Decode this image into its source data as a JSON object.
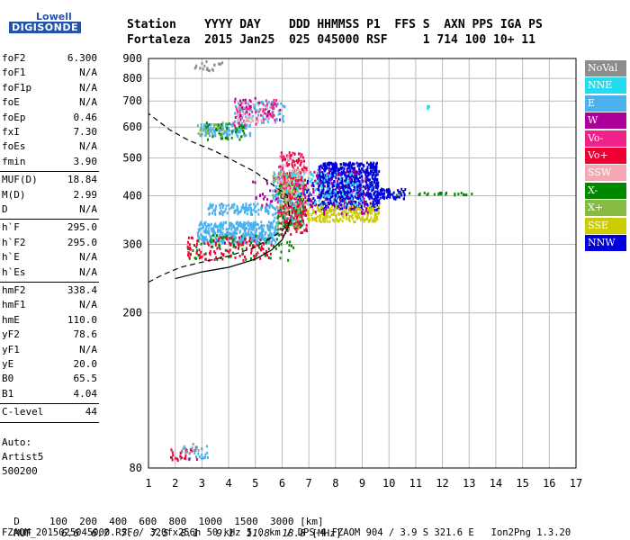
{
  "logo": {
    "line1": "Lowell",
    "line2": "DIGISONDE"
  },
  "header": {
    "row1": "Station    YYYY DAY    DDD HHMMSS P1  FFS S  AXN PPS IGA PS",
    "row2": "Fortaleza  2015 Jan25  025 045000 RSF     1 714 100 10+ 11"
  },
  "params": [
    {
      "name": "foF2",
      "value": "6.300"
    },
    {
      "name": "foF1",
      "value": "N/A"
    },
    {
      "name": "foF1p",
      "value": "N/A"
    },
    {
      "name": "foE",
      "value": "N/A"
    },
    {
      "name": "foEp",
      "value": "0.46"
    },
    {
      "name": "fxI",
      "value": "7.30"
    },
    {
      "name": "foEs",
      "value": "N/A"
    },
    {
      "name": "fmin",
      "value": "3.90"
    },
    {
      "name": "MUF(D)",
      "value": "18.84"
    },
    {
      "name": "M(D)",
      "value": "2.99"
    },
    {
      "name": "D",
      "value": "N/A"
    },
    {
      "name": "h`F",
      "value": "295.0"
    },
    {
      "name": "h`F2",
      "value": "295.0"
    },
    {
      "name": "h`E",
      "value": "N/A"
    },
    {
      "name": "h`Es",
      "value": "N/A"
    },
    {
      "name": "hmF2",
      "value": "338.4"
    },
    {
      "name": "hmF1",
      "value": "N/A"
    },
    {
      "name": "hmE",
      "value": "110.0"
    },
    {
      "name": "yF2",
      "value": "78.6"
    },
    {
      "name": "yF1",
      "value": "N/A"
    },
    {
      "name": "yE",
      "value": "20.0"
    },
    {
      "name": "B0",
      "value": "65.5"
    },
    {
      "name": "B1",
      "value": "4.04"
    },
    {
      "name": "C-level",
      "value": "44"
    }
  ],
  "auto_block": {
    "line1": "Auto:",
    "line2": "Artist5",
    "line3": "500200"
  },
  "legend": [
    {
      "label": "NoVal",
      "color": "#8c8c8c"
    },
    {
      "label": "NNE",
      "color": "#22ddee"
    },
    {
      "label": "E",
      "color": "#4ab0ee"
    },
    {
      "label": "W",
      "color": "#aa0099"
    },
    {
      "label": "Vo-",
      "color": "#ee2288"
    },
    {
      "label": "Vo+",
      "color": "#ee0033"
    },
    {
      "label": "SSW",
      "color": "#f4a8b4"
    },
    {
      "label": "X-",
      "color": "#008800"
    },
    {
      "label": "X+",
      "color": "#88bb44"
    },
    {
      "label": "SSE",
      "color": "#cccc00"
    },
    {
      "label": "NNW",
      "color": "#0000dd"
    }
  ],
  "muf_table": {
    "d_label": "D",
    "d_values": [
      "100",
      "200",
      "400",
      "600",
      "800",
      "1000",
      "1500",
      "3000"
    ],
    "d_unit": "[km]",
    "muf_label": "MUF",
    "muf_values": [
      "6.6",
      "6.7",
      "7.0",
      "7.5",
      "8.1",
      "9.1",
      "11.8",
      "18.8"
    ],
    "muf_unit": "[MHz]"
  },
  "footer": "FZAOM_2015025045000.RSF / 320fx256h 50 kHz 5.0 km / DPS-4 FZAOM 904 / 3.9 S 321.6 E   Ion2Png 1.3.20",
  "chart_data": {
    "type": "scatter",
    "title": "",
    "xlabel": "",
    "ylabel": "",
    "xlim": [
      1,
      17
    ],
    "ylim": [
      80,
      900
    ],
    "yscale": "log",
    "x_ticks": [
      1,
      2,
      3,
      4,
      5,
      6,
      7,
      8,
      9,
      10,
      11,
      12,
      13,
      14,
      15,
      16,
      17
    ],
    "y_ticks": [
      80,
      200,
      300,
      400,
      500,
      600,
      700,
      800,
      900
    ],
    "grid": true,
    "series": [
      {
        "name": "E",
        "color": "#4ab0ee",
        "regions": [
          {
            "x": [
              2.8,
              5.8
            ],
            "y": [
              305,
              345
            ],
            "n": 420
          },
          {
            "x": [
              3.2,
              5.6
            ],
            "y": [
              360,
              385
            ],
            "n": 120
          },
          {
            "x": [
              5.6,
              6.8
            ],
            "y": [
              340,
              470
            ],
            "n": 220
          },
          {
            "x": [
              7.2,
              9.5
            ],
            "y": [
              400,
              470
            ],
            "n": 140
          },
          {
            "x": [
              2.9,
              4.8
            ],
            "y": [
              570,
              620
            ],
            "n": 120
          },
          {
            "x": [
              4.2,
              6.1
            ],
            "y": [
              620,
              700
            ],
            "n": 90
          },
          {
            "x": [
              2.1,
              3.2
            ],
            "y": [
              85,
              92
            ],
            "n": 30
          }
        ]
      },
      {
        "name": "NNW",
        "color": "#0000dd",
        "regions": [
          {
            "x": [
              7.3,
              9.6
            ],
            "y": [
              370,
              490
            ],
            "n": 700
          },
          {
            "x": [
              9.6,
              10.6
            ],
            "y": [
              395,
              420
            ],
            "n": 60
          },
          {
            "x": [
              6.5,
              7.2
            ],
            "y": [
              380,
              440
            ],
            "n": 50
          }
        ]
      },
      {
        "name": "SSE",
        "color": "#cccc00",
        "regions": [
          {
            "x": [
              6.9,
              9.6
            ],
            "y": [
              345,
              380
            ],
            "n": 220
          },
          {
            "x": [
              6.0,
              6.9
            ],
            "y": [
              380,
              460
            ],
            "n": 40
          }
        ]
      },
      {
        "name": "X-",
        "color": "#008800",
        "regions": [
          {
            "x": [
              2.4,
              6.4
            ],
            "y": [
              275,
              320
            ],
            "n": 80
          },
          {
            "x": [
              5.8,
              6.8
            ],
            "y": [
              330,
              430
            ],
            "n": 120
          },
          {
            "x": [
              10.2,
              13.3
            ],
            "y": [
              404,
              410
            ],
            "n": 25
          },
          {
            "x": [
              3.1,
              4.6
            ],
            "y": [
              560,
              620
            ],
            "n": 40
          }
        ]
      },
      {
        "name": "Vo+",
        "color": "#ee0033",
        "regions": [
          {
            "x": [
              2.4,
              5.6
            ],
            "y": [
              275,
              315
            ],
            "n": 110
          },
          {
            "x": [
              5.9,
              6.9
            ],
            "y": [
              320,
              520
            ],
            "n": 170
          },
          {
            "x": [
              1.8,
              2.8
            ],
            "y": [
              84,
              90
            ],
            "n": 20
          }
        ]
      },
      {
        "name": "Vo-",
        "color": "#ee2288",
        "regions": [
          {
            "x": [
              5.8,
              6.8
            ],
            "y": [
              350,
              520
            ],
            "n": 90
          },
          {
            "x": [
              4.0,
              5.8
            ],
            "y": [
              610,
              710
            ],
            "n": 60
          }
        ]
      },
      {
        "name": "W",
        "color": "#aa0099",
        "regions": [
          {
            "x": [
              7.0,
              9.2
            ],
            "y": [
              360,
              470
            ],
            "n": 90
          },
          {
            "x": [
              4.8,
              5.8
            ],
            "y": [
              380,
              450
            ],
            "n": 20
          },
          {
            "x": [
              4.2,
              6.0
            ],
            "y": [
              630,
              720
            ],
            "n": 25
          }
        ]
      },
      {
        "name": "NNE",
        "color": "#22ddee",
        "regions": [
          {
            "x": [
              6.0,
              9.0
            ],
            "y": [
              380,
              460
            ],
            "n": 80
          },
          {
            "x": [
              11.4,
              11.5
            ],
            "y": [
              670,
              710
            ],
            "n": 5
          }
        ]
      },
      {
        "name": "X+",
        "color": "#88bb44",
        "regions": [
          {
            "x": [
              5.6,
              6.7
            ],
            "y": [
              330,
              470
            ],
            "n": 50
          },
          {
            "x": [
              2.7,
              4.0
            ],
            "y": [
              570,
              620
            ],
            "n": 20
          }
        ]
      },
      {
        "name": "SSW",
        "color": "#f4a8b4",
        "regions": [
          {
            "x": [
              5.8,
              7.0
            ],
            "y": [
              360,
              510
            ],
            "n": 60
          },
          {
            "x": [
              4.2,
              5.6
            ],
            "y": [
              620,
              700
            ],
            "n": 30
          }
        ]
      },
      {
        "name": "NoVal",
        "color": "#8c8c8c",
        "regions": [
          {
            "x": [
              2.7,
              3.8
            ],
            "y": [
              840,
              900
            ],
            "n": 20
          },
          {
            "x": [
              2.2,
              2.8
            ],
            "y": [
              88,
              94
            ],
            "n": 10
          }
        ]
      }
    ],
    "profile_curve": {
      "x": [
        2.0,
        3.0,
        4.0,
        5.0,
        5.6,
        6.0,
        6.2,
        6.3
      ],
      "y": [
        245,
        255,
        262,
        275,
        290,
        308,
        330,
        345
      ]
    },
    "dashed_curve": {
      "x": [
        1.0,
        1.5,
        2.2,
        3.0,
        4.0,
        5.0,
        6.0,
        6.3,
        6.2,
        5.0,
        3.5,
        2.5,
        1.8,
        1.0
      ],
      "y": [
        240,
        250,
        262,
        270,
        280,
        295,
        325,
        345,
        400,
        460,
        520,
        555,
        590,
        650
      ]
    }
  }
}
